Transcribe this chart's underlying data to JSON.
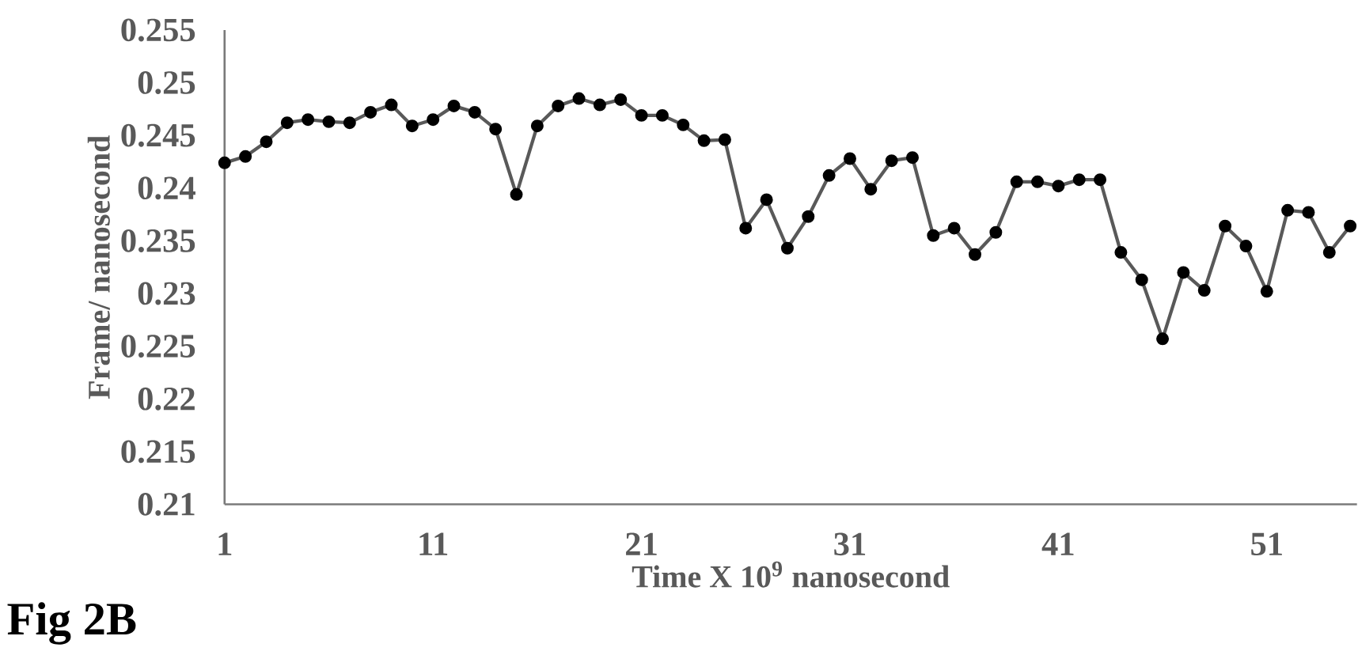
{
  "chart_data": {
    "type": "line",
    "xlabel": "Time   X 10$^{9}$ nanosecond",
    "ylabel": "Frame/ nanosecond",
    "annotations": [
      "Fig 2B"
    ],
    "categories": [
      "1",
      null,
      null,
      null,
      null,
      null,
      null,
      null,
      null,
      null,
      "11",
      null,
      null,
      null,
      null,
      null,
      null,
      null,
      null,
      null,
      "21",
      null,
      null,
      null,
      null,
      null,
      null,
      null,
      null,
      null,
      "31",
      null,
      null,
      null,
      null,
      null,
      null,
      null,
      null,
      null,
      "41",
      null,
      null,
      null,
      null,
      null,
      null,
      null,
      null,
      null,
      "51",
      null,
      null,
      null,
      null
    ],
    "series": [
      {
        "color": "#595959",
        "values": [
          0.2424,
          0.243,
          0.2444,
          0.2462,
          0.2465,
          0.2463,
          0.2462,
          0.2472,
          0.2479,
          0.2459,
          0.2465,
          0.2478,
          0.2472,
          0.2456,
          0.2394,
          0.2459,
          0.2478,
          0.2485,
          0.2479,
          0.2484,
          0.2469,
          0.2469,
          0.246,
          0.2445,
          0.2446,
          0.2362,
          0.2389,
          0.2343,
          0.2373,
          0.2412,
          0.2428,
          0.2399,
          0.2426,
          0.2429,
          0.2355,
          0.2362,
          0.2337,
          0.2358,
          0.2406,
          0.2406,
          0.2402,
          0.2408,
          0.2408,
          0.2339,
          0.2313,
          0.2257,
          0.232,
          0.2303,
          0.2364,
          0.2345,
          0.2302,
          0.2379,
          0.2377,
          0.2339,
          0.2364
        ]
      }
    ],
    "ylim": [
      0.21,
      0.255
    ],
    "yticks": [
      0.21,
      0.215,
      0.22,
      0.225,
      0.23,
      0.235,
      0.24,
      0.245,
      0.25,
      0.255
    ],
    "marker": "circle",
    "line_style": "solid"
  }
}
